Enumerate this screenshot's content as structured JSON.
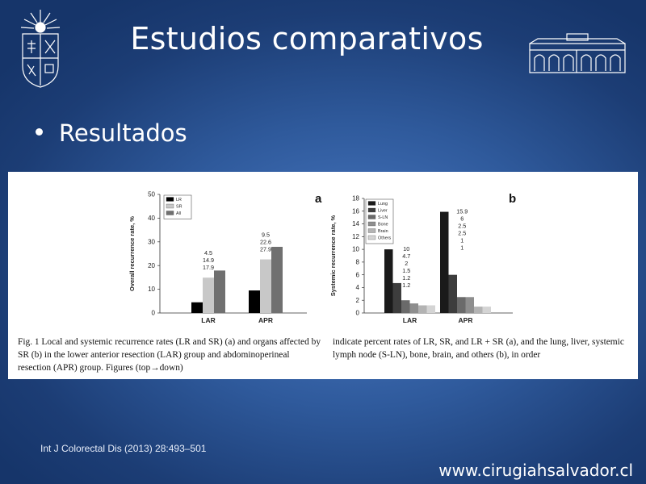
{
  "slide": {
    "title": "Estudios comparativos",
    "bullet": "Resultados",
    "citation": "Int J Colorectal Dis (2013) 28:493–501",
    "website": "www.cirugiahsalvador.cl",
    "background_color": "#2f5a9c"
  },
  "figure": {
    "caption_left": "Fig. 1  Local and systemic recurrence rates (LR and SR) (a) and organs affected by SR (b) in the lower anterior resection (LAR) group and abdominoperineal resection (APR) group. Figures (top→down)",
    "caption_right": "indicate percent rates of LR, SR, and LR + SR (a), and the lung, liver, systemic lymph node (S-LN), bone, brain, and others (b), in order"
  },
  "chart_data": [
    {
      "type": "bar",
      "panel_label": "a",
      "ylabel": "Overall recurrence rate, %",
      "ylim": [
        0,
        50
      ],
      "yticks": [
        "0",
        "10",
        "20",
        "30",
        "40",
        "50"
      ],
      "categories": [
        "LAR",
        "APR"
      ],
      "legend_placement": "top-left",
      "series": [
        {
          "name": "LR",
          "color": "#000000",
          "values": [
            4.5,
            9.5
          ]
        },
        {
          "name": "SR",
          "color": "#c8c8c8",
          "values": [
            14.9,
            22.6
          ]
        },
        {
          "name": "All",
          "color": "#707070",
          "values": [
            17.9,
            27.9
          ]
        }
      ],
      "data_labels": [
        [
          "4.5",
          "14.9",
          "17.9"
        ],
        [
          "9.5",
          "22.6",
          "27.9"
        ]
      ]
    },
    {
      "type": "bar",
      "panel_label": "b",
      "ylabel": "Systemic recurrence rate, %",
      "ylim": [
        0,
        18
      ],
      "yticks": [
        "0",
        "2",
        "4",
        "6",
        "8",
        "10",
        "12",
        "14",
        "16",
        "18"
      ],
      "categories": [
        "LAR",
        "APR"
      ],
      "legend_placement": "top-left",
      "series": [
        {
          "name": "Lung",
          "color": "#1a1a1a",
          "values": [
            10,
            15.9
          ]
        },
        {
          "name": "Liver",
          "color": "#3d3d3d",
          "values": [
            4.7,
            6
          ]
        },
        {
          "name": "S-LN",
          "color": "#6a6a6a",
          "values": [
            2,
            2.5
          ]
        },
        {
          "name": "Bone",
          "color": "#8e8e8e",
          "values": [
            1.5,
            2.5
          ]
        },
        {
          "name": "Brain",
          "color": "#b3b3b3",
          "values": [
            1.2,
            1
          ]
        },
        {
          "name": "Others",
          "color": "#d4d4d4",
          "values": [
            1.2,
            1
          ]
        }
      ],
      "data_labels": [
        [
          "10",
          "4.7",
          "2",
          "1.5",
          "1.2",
          "1.2"
        ],
        [
          "15.9",
          "6",
          "2.5",
          "2.5",
          "1",
          "1"
        ]
      ]
    }
  ]
}
